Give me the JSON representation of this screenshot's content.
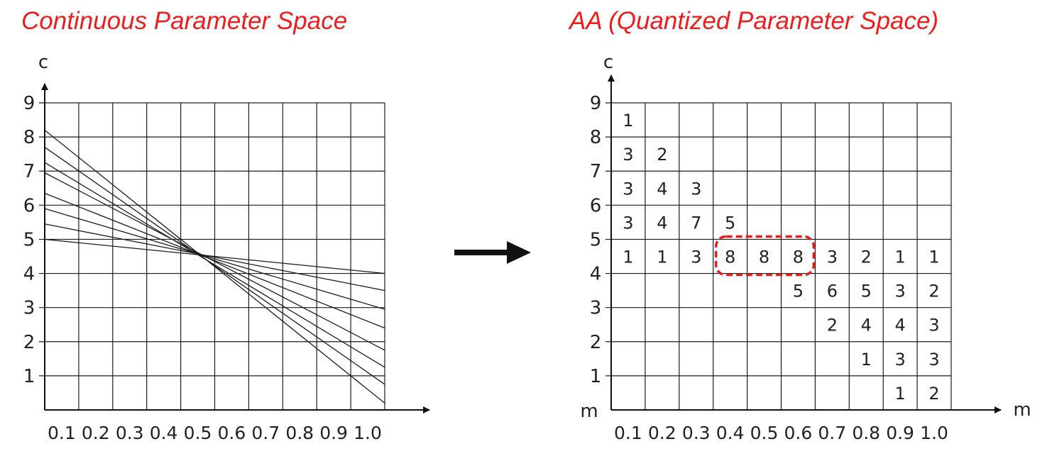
{
  "titles": {
    "left": "Continuous Parameter Space",
    "right": "AA (Quantized Parameter Space)"
  },
  "colors": {
    "title": "#ee1c1c",
    "highlight": "#e01f1f",
    "ink": "#222222"
  },
  "axes": {
    "y_label": "c",
    "x_label": "m",
    "y_ticks": [
      "1",
      "2",
      "3",
      "4",
      "5",
      "6",
      "7",
      "8",
      "9"
    ],
    "x_ticks": [
      "0.1",
      "0.2",
      "0.3",
      "0.4",
      "0.5",
      "0.6",
      "0.7",
      "0.8",
      "0.9",
      "1.0"
    ]
  },
  "continuous_lines": [
    {
      "c_at_m0": 8.2,
      "c_at_m1": 0.2
    },
    {
      "c_at_m0": 7.7,
      "c_at_m1": 0.75
    },
    {
      "c_at_m0": 7.25,
      "c_at_m1": 1.25
    },
    {
      "c_at_m0": 6.95,
      "c_at_m1": 1.75
    },
    {
      "c_at_m0": 6.35,
      "c_at_m1": 2.4
    },
    {
      "c_at_m0": 5.9,
      "c_at_m1": 2.95
    },
    {
      "c_at_m0": 5.45,
      "c_at_m1": 3.5
    },
    {
      "c_at_m0": 5.0,
      "c_at_m1": 4.0
    }
  ],
  "accumulator_cells": [
    {
      "col": 0,
      "row": 8,
      "value": "1"
    },
    {
      "col": 0,
      "row": 7,
      "value": "3"
    },
    {
      "col": 1,
      "row": 7,
      "value": "2"
    },
    {
      "col": 0,
      "row": 6,
      "value": "3"
    },
    {
      "col": 1,
      "row": 6,
      "value": "4"
    },
    {
      "col": 2,
      "row": 6,
      "value": "3"
    },
    {
      "col": 0,
      "row": 5,
      "value": "3"
    },
    {
      "col": 1,
      "row": 5,
      "value": "4"
    },
    {
      "col": 2,
      "row": 5,
      "value": "7"
    },
    {
      "col": 3,
      "row": 5,
      "value": "5"
    },
    {
      "col": 0,
      "row": 4,
      "value": "1"
    },
    {
      "col": 1,
      "row": 4,
      "value": "1"
    },
    {
      "col": 2,
      "row": 4,
      "value": "3"
    },
    {
      "col": 3,
      "row": 4,
      "value": "8"
    },
    {
      "col": 4,
      "row": 4,
      "value": "8"
    },
    {
      "col": 5,
      "row": 4,
      "value": "8"
    },
    {
      "col": 6,
      "row": 4,
      "value": "3"
    },
    {
      "col": 7,
      "row": 4,
      "value": "2"
    },
    {
      "col": 8,
      "row": 4,
      "value": "1"
    },
    {
      "col": 9,
      "row": 4,
      "value": "1"
    },
    {
      "col": 5,
      "row": 3,
      "value": "5"
    },
    {
      "col": 6,
      "row": 3,
      "value": "6"
    },
    {
      "col": 7,
      "row": 3,
      "value": "5"
    },
    {
      "col": 8,
      "row": 3,
      "value": "3"
    },
    {
      "col": 9,
      "row": 3,
      "value": "2"
    },
    {
      "col": 6,
      "row": 2,
      "value": "2"
    },
    {
      "col": 7,
      "row": 2,
      "value": "4"
    },
    {
      "col": 8,
      "row": 2,
      "value": "4"
    },
    {
      "col": 9,
      "row": 2,
      "value": "3"
    },
    {
      "col": 7,
      "row": 1,
      "value": "1"
    },
    {
      "col": 8,
      "row": 1,
      "value": "3"
    },
    {
      "col": 9,
      "row": 1,
      "value": "3"
    },
    {
      "col": 8,
      "row": 0,
      "value": "1"
    },
    {
      "col": 9,
      "row": 0,
      "value": "2"
    }
  ],
  "highlight": {
    "row": 4,
    "col_start": 3,
    "col_end": 5
  }
}
